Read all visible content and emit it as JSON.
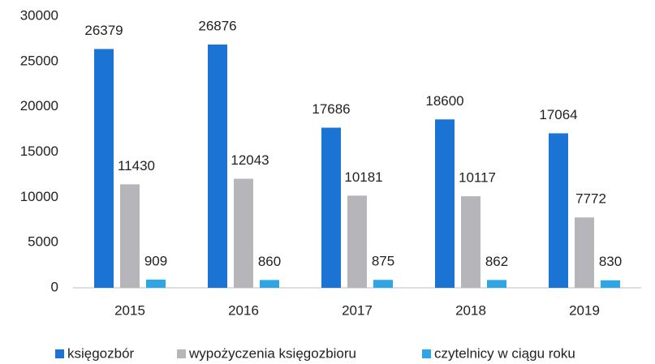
{
  "chart_data": {
    "type": "bar",
    "categories": [
      "2015",
      "2016",
      "2017",
      "2018",
      "2019"
    ],
    "series": [
      {
        "name": "księgozbór",
        "color": "#1b74d3",
        "values": [
          26379,
          26876,
          17686,
          18600,
          17064
        ]
      },
      {
        "name": "wypożyczenia księgozbioru",
        "color": "#b6b6ba",
        "values": [
          11430,
          12043,
          10181,
          10117,
          7772
        ]
      },
      {
        "name": "czytelnicy w ciągu roku",
        "color": "#2ea6e6",
        "values": [
          909,
          860,
          875,
          862,
          830
        ]
      }
    ],
    "ylim": [
      0,
      30000
    ],
    "yticks": [
      0,
      5000,
      10000,
      15000,
      20000,
      25000,
      30000
    ],
    "grid": false,
    "legend": "bottom"
  }
}
